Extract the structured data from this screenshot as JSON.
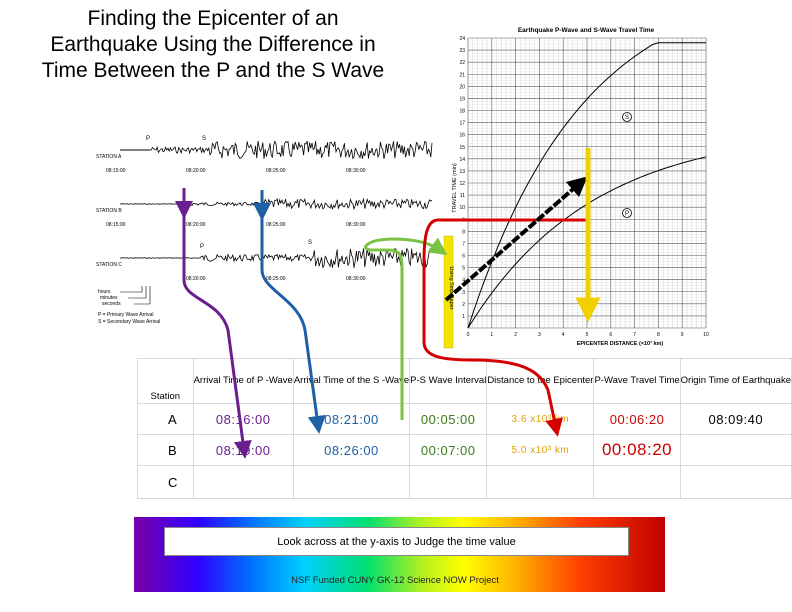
{
  "title": {
    "lines": [
      "Finding the Epicenter of an",
      "Earthquake Using the Difference in",
      "Time Between the P and the S Wave"
    ]
  },
  "seismogram": {
    "stations": [
      "STATION A",
      "STATION B",
      "STATION C"
    ],
    "times_a": [
      "08:15:00",
      "08:20:00",
      "08:25:00",
      "08:30:00"
    ],
    "times_b": [
      "08:15:00",
      "08:20:00",
      "08:25:00",
      "08:30:00"
    ],
    "times_c": [
      "08:20:00",
      "08:25:00",
      "08:30:00"
    ],
    "wave_p": "P",
    "wave_s": "S",
    "legend": [
      "hours",
      "minutes",
      "seconds",
      "P = Primary Wave Arrival",
      "S = Secondary Wave Arrival"
    ]
  },
  "travel_chart": {
    "title": "Earthquake P-Wave and S-Wave Travel Time",
    "ylabel": "TRAVEL TIME (min)",
    "xlabel": "EPICENTER DISTANCE (×10³ km)",
    "y_ticks": [
      "1",
      "2",
      "3",
      "4",
      "5",
      "6",
      "7",
      "8",
      "9",
      "10",
      "11",
      "12",
      "13",
      "14",
      "15",
      "16",
      "17",
      "18",
      "19",
      "20",
      "21",
      "22",
      "23",
      "24"
    ],
    "x_ticks": [
      "0",
      "1",
      "2",
      "3",
      "4",
      "5",
      "6",
      "7",
      "8",
      "9",
      "10"
    ],
    "s_label": "S",
    "p_label": "P",
    "strip_label": "Using Strip Paper"
  },
  "table": {
    "headers": [
      "Station",
      "Arrival Time of P -Wave",
      "Arrival Time of the S -Wave",
      "P-S Wave Interval",
      "Distance to the Epicenter",
      "P-Wave Travel Time",
      "Origin Time of Earthquake"
    ],
    "rows": [
      {
        "station": "A",
        "p_arrival": "08:16:00",
        "s_arrival": "08:21:00",
        "interval": "00:05:00",
        "distance": "3.6 x10³ km",
        "p_travel": "00:06:20",
        "origin": "08:09:40"
      },
      {
        "station": "B",
        "p_arrival": "08:19:00",
        "s_arrival": "08:26:00",
        "interval": "00:07:00",
        "distance": "5.0 x10³ km",
        "p_travel": "00:08:20",
        "origin": ""
      },
      {
        "station": "C",
        "p_arrival": "",
        "s_arrival": "",
        "interval": "",
        "distance": "",
        "p_travel": "",
        "origin": ""
      }
    ]
  },
  "banner": {
    "text": "Look across at the y-axis to Judge the time value"
  },
  "footer": {
    "text": "NSF Funded CUNY GK-12 Science NOW Project"
  },
  "colors": {
    "purple": "#6b1f8f",
    "blue": "#1e5fa5",
    "green": "#7cc242",
    "red": "#d40000",
    "yellow": "#f2d000"
  }
}
